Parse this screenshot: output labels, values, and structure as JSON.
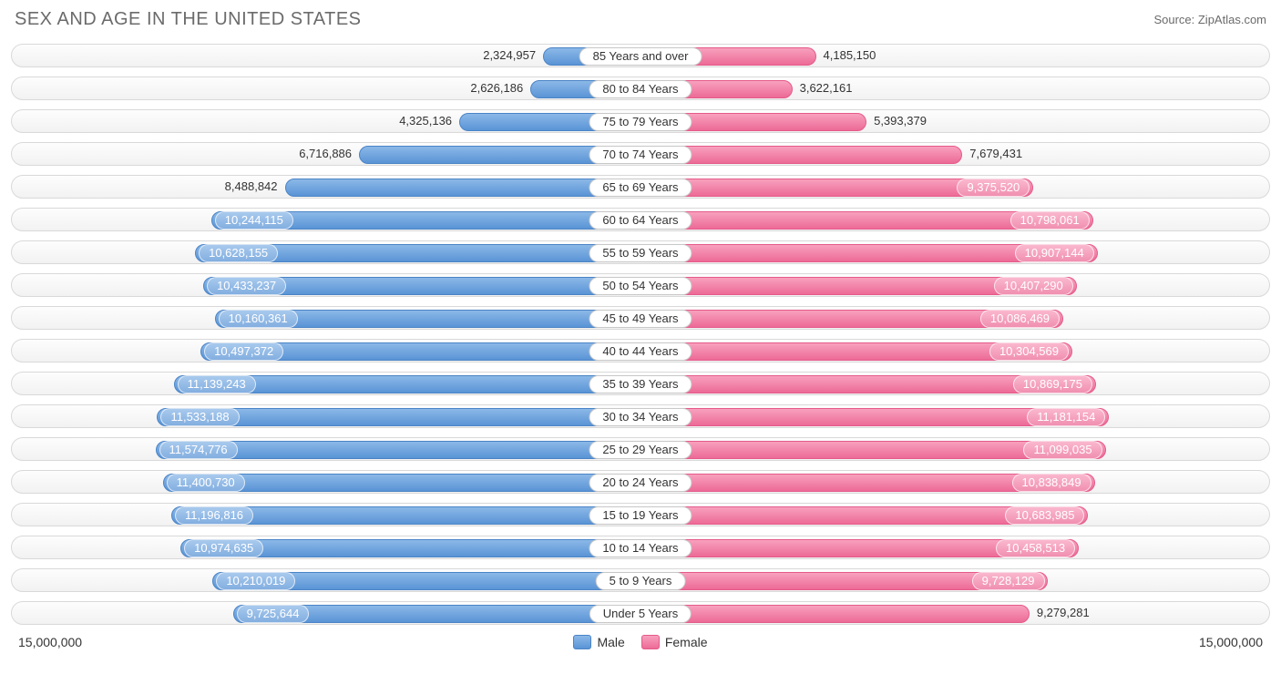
{
  "title": "SEX AND AGE IN THE UNITED STATES",
  "source": "Source: ZipAtlas.com",
  "axis_max": 15000000,
  "axis_label": "15,000,000",
  "inside_threshold": 9300000,
  "colors": {
    "male_top": "#8bb8e8",
    "male_bottom": "#5a94d6",
    "male_border": "#4a84c6",
    "female_top": "#f8a0bd",
    "female_bottom": "#ec6a97",
    "female_border": "#e55a8a",
    "track_border": "#d9d9d9",
    "text": "#333333",
    "title_text": "#6b6b6b",
    "background": "#ffffff"
  },
  "legend": {
    "male": "Male",
    "female": "Female"
  },
  "rows": [
    {
      "category": "85 Years and over",
      "male": 2324957,
      "female": 4185150,
      "male_label": "2,324,957",
      "female_label": "4,185,150"
    },
    {
      "category": "80 to 84 Years",
      "male": 2626186,
      "female": 3622161,
      "male_label": "2,626,186",
      "female_label": "3,622,161"
    },
    {
      "category": "75 to 79 Years",
      "male": 4325136,
      "female": 5393379,
      "male_label": "4,325,136",
      "female_label": "5,393,379"
    },
    {
      "category": "70 to 74 Years",
      "male": 6716886,
      "female": 7679431,
      "male_label": "6,716,886",
      "female_label": "7,679,431"
    },
    {
      "category": "65 to 69 Years",
      "male": 8488842,
      "female": 9375520,
      "male_label": "8,488,842",
      "female_label": "9,375,520"
    },
    {
      "category": "60 to 64 Years",
      "male": 10244115,
      "female": 10798061,
      "male_label": "10,244,115",
      "female_label": "10,798,061"
    },
    {
      "category": "55 to 59 Years",
      "male": 10628155,
      "female": 10907144,
      "male_label": "10,628,155",
      "female_label": "10,907,144"
    },
    {
      "category": "50 to 54 Years",
      "male": 10433237,
      "female": 10407290,
      "male_label": "10,433,237",
      "female_label": "10,407,290"
    },
    {
      "category": "45 to 49 Years",
      "male": 10160361,
      "female": 10086469,
      "male_label": "10,160,361",
      "female_label": "10,086,469"
    },
    {
      "category": "40 to 44 Years",
      "male": 10497372,
      "female": 10304569,
      "male_label": "10,497,372",
      "female_label": "10,304,569"
    },
    {
      "category": "35 to 39 Years",
      "male": 11139243,
      "female": 10869175,
      "male_label": "11,139,243",
      "female_label": "10,869,175"
    },
    {
      "category": "30 to 34 Years",
      "male": 11533188,
      "female": 11181154,
      "male_label": "11,533,188",
      "female_label": "11,181,154"
    },
    {
      "category": "25 to 29 Years",
      "male": 11574776,
      "female": 11099035,
      "male_label": "11,574,776",
      "female_label": "11,099,035"
    },
    {
      "category": "20 to 24 Years",
      "male": 11400730,
      "female": 10838849,
      "male_label": "11,400,730",
      "female_label": "10,838,849"
    },
    {
      "category": "15 to 19 Years",
      "male": 11196816,
      "female": 10683985,
      "male_label": "11,196,816",
      "female_label": "10,683,985"
    },
    {
      "category": "10 to 14 Years",
      "male": 10974635,
      "female": 10458513,
      "male_label": "10,974,635",
      "female_label": "10,458,513"
    },
    {
      "category": "5 to 9 Years",
      "male": 10210019,
      "female": 9728129,
      "male_label": "10,210,019",
      "female_label": "9,728,129"
    },
    {
      "category": "Under 5 Years",
      "male": 9725644,
      "female": 9279281,
      "male_label": "9,725,644",
      "female_label": "9,279,281"
    }
  ]
}
